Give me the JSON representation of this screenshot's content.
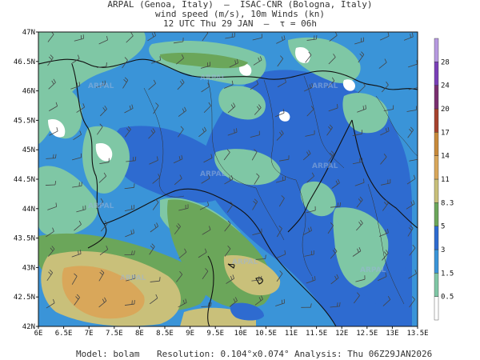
{
  "header": {
    "line1": "ARPAL (Genoa, Italy)  –  ISAC-CNR (Bologna, Italy)",
    "line2": "wind speed (m/s), 10m Winds (kn)",
    "line3": "12 UTC Thu 29 JAN  –  τ = 06h"
  },
  "map": {
    "lat_labels": [
      "47N",
      "46.5N",
      "46N",
      "45.5N",
      "45N",
      "44.5N",
      "44N",
      "43.5N",
      "43N",
      "42.5N",
      "42N"
    ],
    "lon_labels": [
      "6E",
      "6.5E",
      "7E",
      "7.5E",
      "8E",
      "8.5E",
      "9E",
      "9.5E",
      "10E",
      "10.5E",
      "11E",
      "11.5E",
      "12E",
      "12.5E",
      "13E",
      "13.5E"
    ],
    "watermarks": [
      "ARPAL",
      "ARPAL",
      "ARPAL",
      "ARPAL",
      "ARPAL",
      "ARPAL",
      "ARPAL",
      "ARPAL",
      "ARPAL"
    ]
  },
  "colorbar": {
    "levels": [
      "0.5",
      "1.5",
      "3",
      "5",
      "8.3",
      "11",
      "14",
      "17",
      "20",
      "24",
      "28"
    ],
    "colors": [
      "#ffffff",
      "#7fc7a5",
      "#3a94d8",
      "#2e6bd0",
      "#6ba65a",
      "#c9c07a",
      "#d9a75a",
      "#c88a3a",
      "#a6422e",
      "#7a2f70",
      "#7a3fb8",
      "#b699e0"
    ]
  },
  "footer": {
    "model": "Model: bolam",
    "resolution": "Resolution: 0.104°x0.074°",
    "analysis": "Analysis: Thu 06Z29JAN2026"
  }
}
